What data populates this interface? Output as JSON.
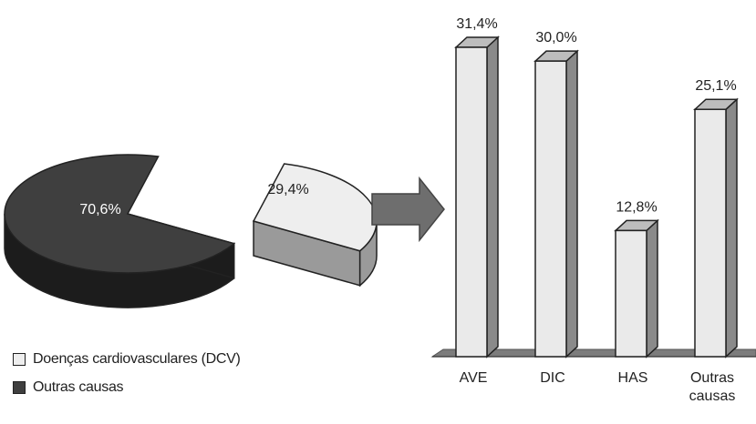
{
  "colors": {
    "light_fill": "#eeeeee",
    "light_side": "#9a9a9a",
    "dark_top": "#3f3f3f",
    "dark_side": "#1c1c1c",
    "bar_front": "#eaeaea",
    "bar_side": "#8a8a8a",
    "bar_top": "#bdbdbd",
    "floor": "#7c7c7c",
    "arrow": "#6e6e6e",
    "outline": "#222222"
  },
  "chart_data": [
    {
      "type": "pie",
      "labels": [
        "Doenças cardiovasculares (DCV)",
        "Outras causas"
      ],
      "values": [
        29.4,
        70.6
      ],
      "value_labels": [
        "29,4%",
        "70,6%"
      ],
      "legend": {
        "placement": "bottom-left",
        "entries": [
          {
            "label": "Doenças cardiovasculares (DCV)",
            "color": "#eeeeee"
          },
          {
            "label": "Outras causas",
            "color": "#3f3f3f"
          }
        ]
      }
    },
    {
      "type": "bar",
      "categories": [
        "AVE",
        "DIC",
        "HAS",
        "Outras causas"
      ],
      "category_lines": [
        [
          "AVE"
        ],
        [
          "DIC"
        ],
        [
          "HAS"
        ],
        [
          "Outras",
          "causas"
        ]
      ],
      "values": [
        31.4,
        30.0,
        12.8,
        25.1
      ],
      "value_labels": [
        "31,4%",
        "30,0%",
        "12,8%",
        "25,1%"
      ],
      "ylim": [
        0,
        31.4
      ],
      "grid": false
    }
  ]
}
